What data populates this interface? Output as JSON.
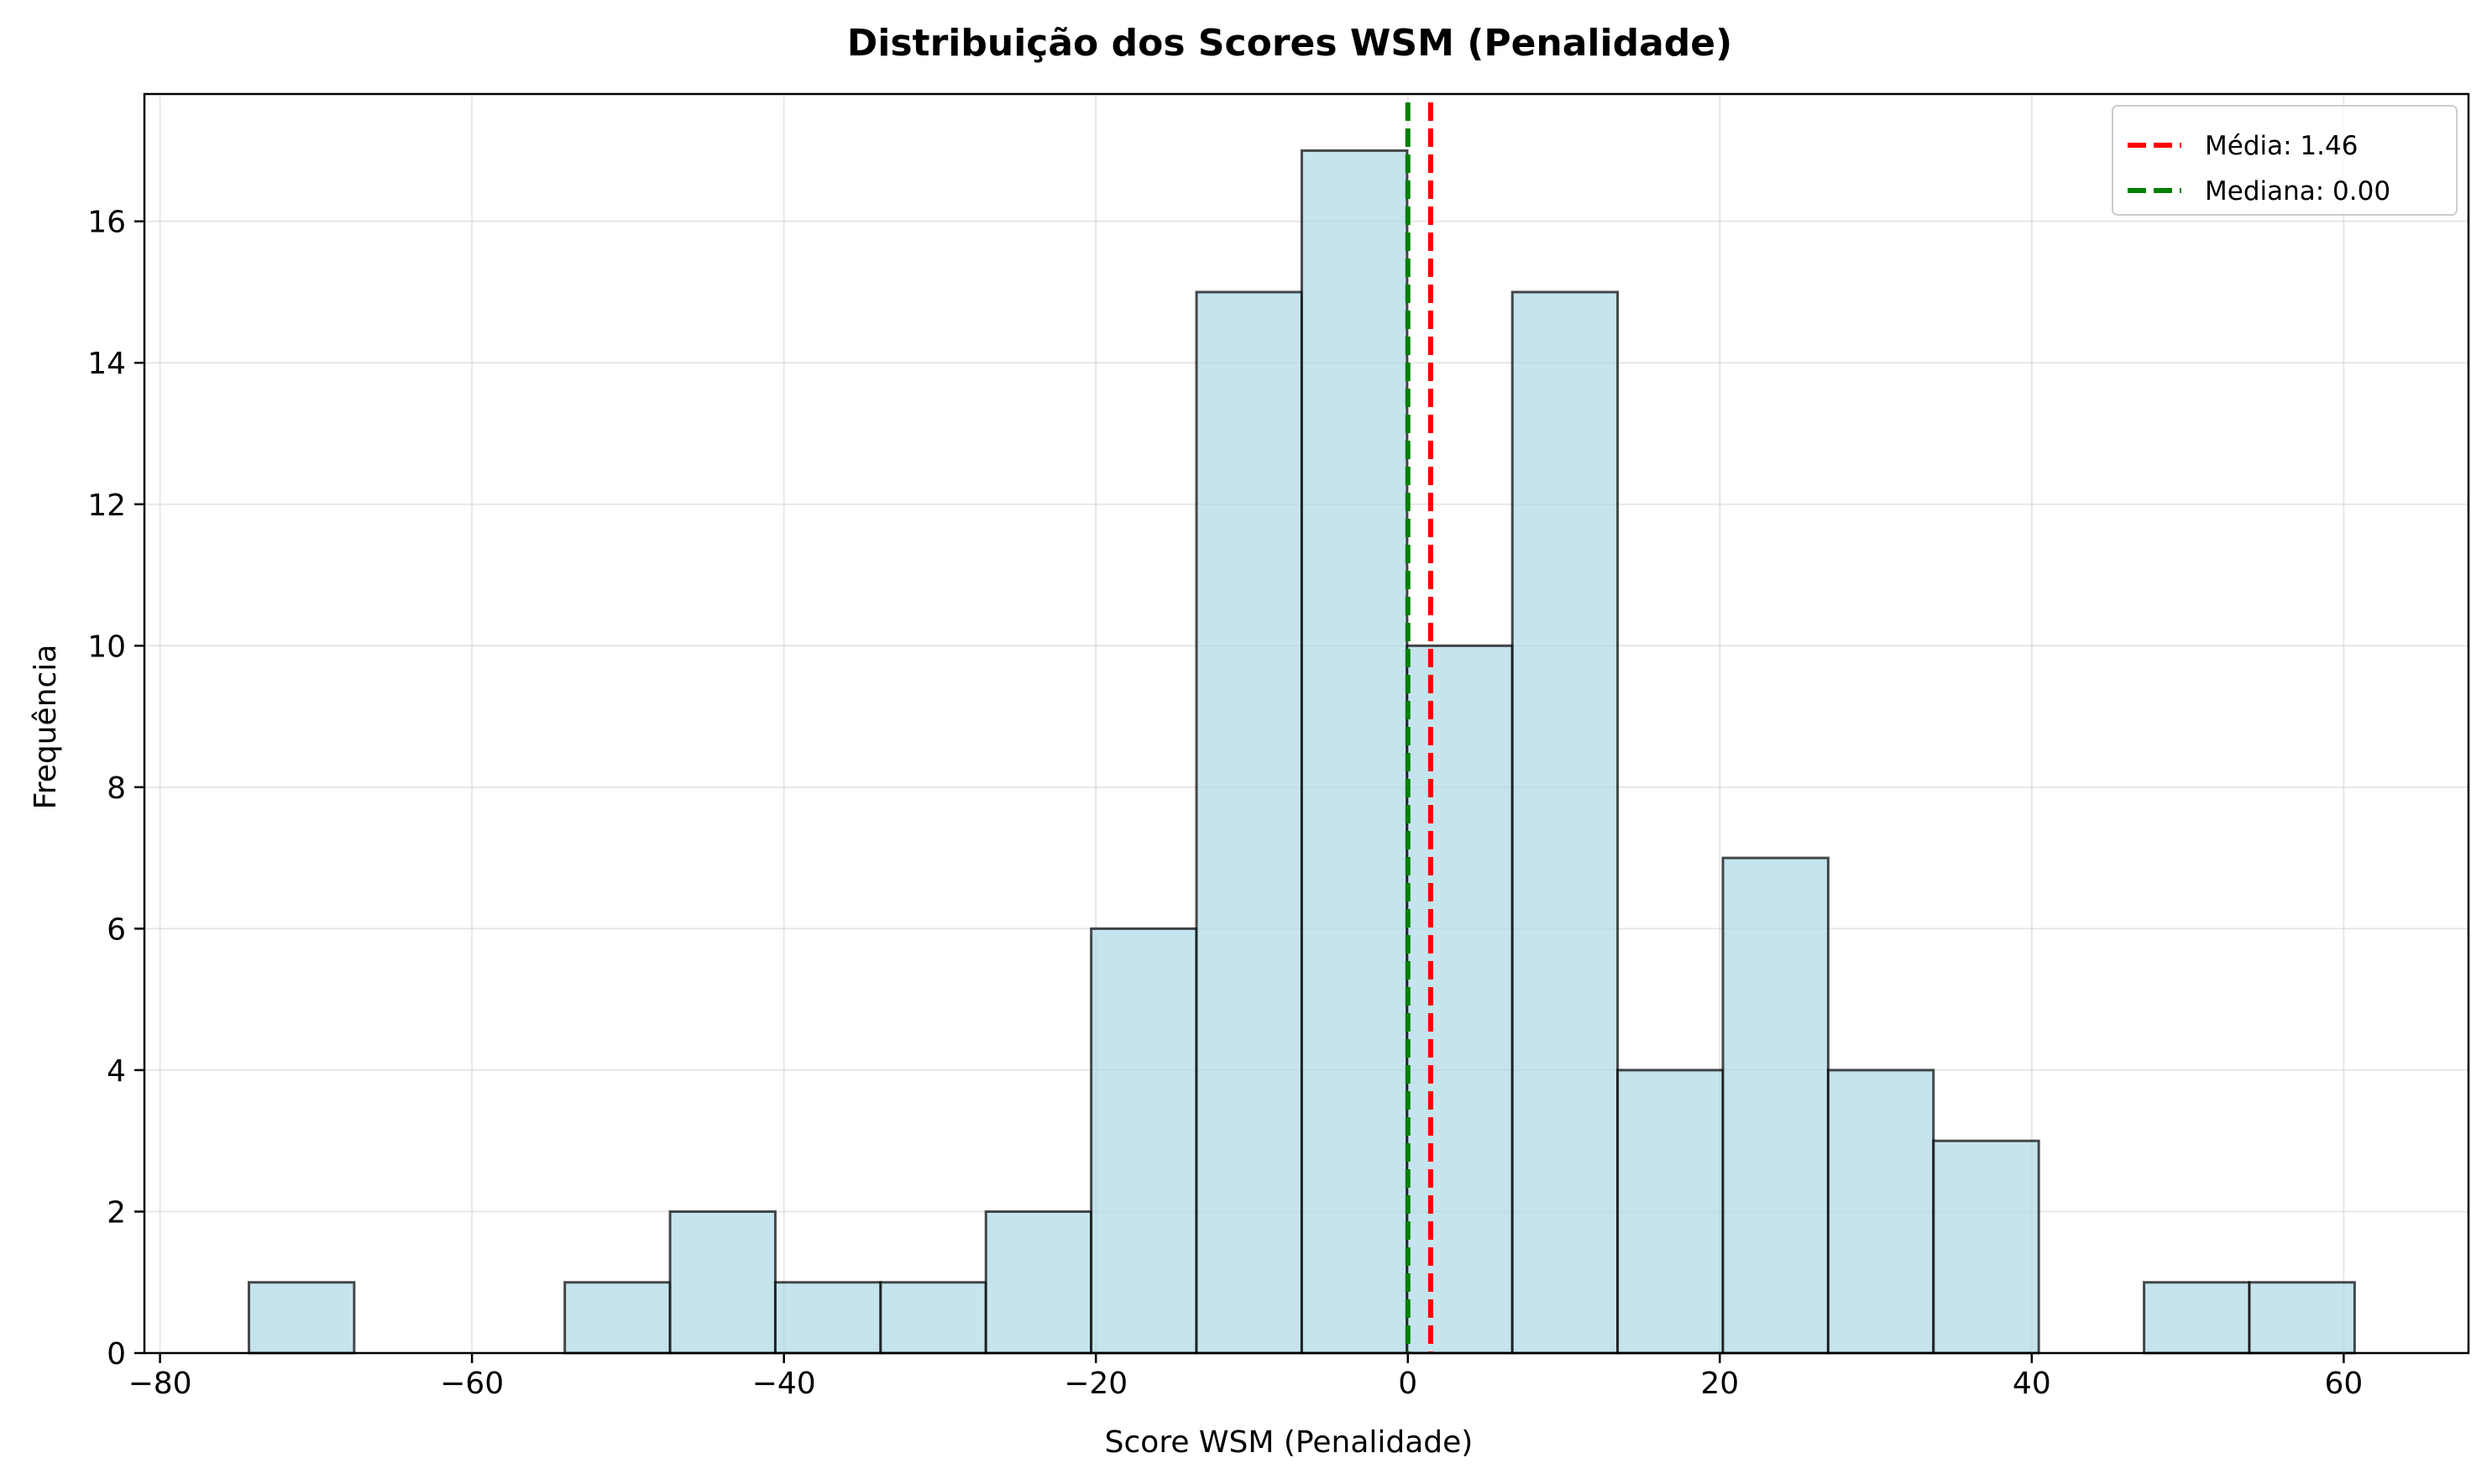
{
  "chart_data": {
    "type": "bar",
    "title": "Distribuição dos Scores WSM (Penalidade)",
    "xlabel": "Score WSM (Penalidade)",
    "ylabel": "Frequência",
    "xlim": [
      -81,
      68
    ],
    "ylim": [
      0,
      17.8
    ],
    "grid": true,
    "legend_position": "top-right",
    "x_ticks": [
      -80,
      -60,
      -40,
      -20,
      0,
      20,
      40,
      60
    ],
    "x_tick_labels": [
      "−80",
      "−60",
      "−40",
      "−20",
      "0",
      "20",
      "40",
      "60"
    ],
    "y_ticks": [
      0,
      2,
      4,
      6,
      8,
      10,
      12,
      14,
      16
    ],
    "y_tick_labels": [
      "0",
      "2",
      "4",
      "6",
      "8",
      "10",
      "12",
      "14",
      "16"
    ],
    "bin_edges": [
      -74.3,
      -67.55,
      -60.8,
      -54.05,
      -47.3,
      -40.55,
      -33.8,
      -27.05,
      -20.3,
      -13.55,
      -6.8,
      -0.05,
      6.7,
      13.45,
      20.2,
      26.95,
      33.7,
      40.45,
      47.2,
      53.95,
      60.7
    ],
    "values": [
      1,
      0,
      0,
      1,
      2,
      1,
      1,
      2,
      6,
      15,
      17,
      10,
      15,
      4,
      7,
      4,
      3,
      0,
      1,
      1
    ],
    "bar_color": "#add8e6",
    "bar_edge_color": "#000000",
    "lines": [
      {
        "name": "Média: 1.46",
        "x": 1.46,
        "color": "#ff0000",
        "style": "dashed"
      },
      {
        "name": "Mediana: 0.00",
        "x": 0.0,
        "color": "#008000",
        "style": "dashed"
      }
    ]
  }
}
